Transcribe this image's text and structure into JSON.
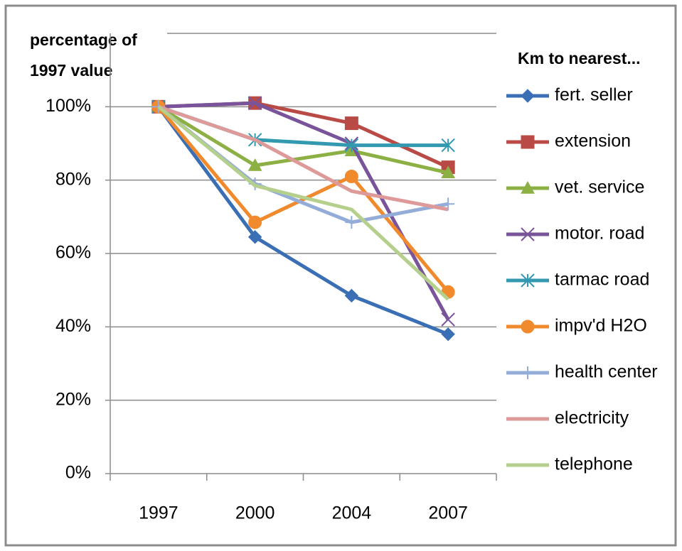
{
  "chart_data": {
    "type": "line",
    "ylabel": [
      "percentage of",
      "1997 value"
    ],
    "legend_title": "Km to nearest...",
    "categories": [
      "1997",
      "2000",
      "2004",
      "2007"
    ],
    "ylim": [
      0,
      120
    ],
    "yticks": [
      {
        "value": 0,
        "label": "0%"
      },
      {
        "value": 20,
        "label": "20%"
      },
      {
        "value": 40,
        "label": "40%"
      },
      {
        "value": 60,
        "label": "60%"
      },
      {
        "value": 80,
        "label": "80%"
      },
      {
        "value": 100,
        "label": "100%"
      }
    ],
    "grid": true,
    "legend": "right",
    "series": [
      {
        "name": "fert. seller",
        "color": "#3a6fb5",
        "marker": "diamond",
        "values": [
          100,
          64.5,
          48.5,
          38
        ]
      },
      {
        "name": "extension",
        "color": "#b94a45",
        "marker": "square",
        "values": [
          100,
          101,
          95.5,
          83.5
        ]
      },
      {
        "name": "vet. service",
        "color": "#8cb043",
        "marker": "triangle",
        "values": [
          100,
          84,
          88,
          82
        ]
      },
      {
        "name": "motor. road",
        "color": "#7a549a",
        "marker": "x",
        "values": [
          100,
          101,
          90,
          42
        ]
      },
      {
        "name": "tarmac road",
        "color": "#3399b0",
        "marker": "star",
        "values": [
          100,
          91,
          89.5,
          89.5
        ]
      },
      {
        "name": "impv'd H2O",
        "color": "#f08a2c",
        "marker": "circle",
        "values": [
          100,
          68.5,
          81,
          49.5
        ]
      },
      {
        "name": "health center",
        "color": "#94acd8",
        "marker": "plus",
        "values": [
          100,
          79,
          68.5,
          73.5
        ]
      },
      {
        "name": "electricity",
        "color": "#de9a99",
        "marker": null,
        "values": [
          100,
          91,
          77,
          72
        ]
      },
      {
        "name": "telephone",
        "color": "#b5cf8c",
        "marker": null,
        "values": [
          100,
          78.5,
          72,
          47.5
        ]
      }
    ]
  }
}
